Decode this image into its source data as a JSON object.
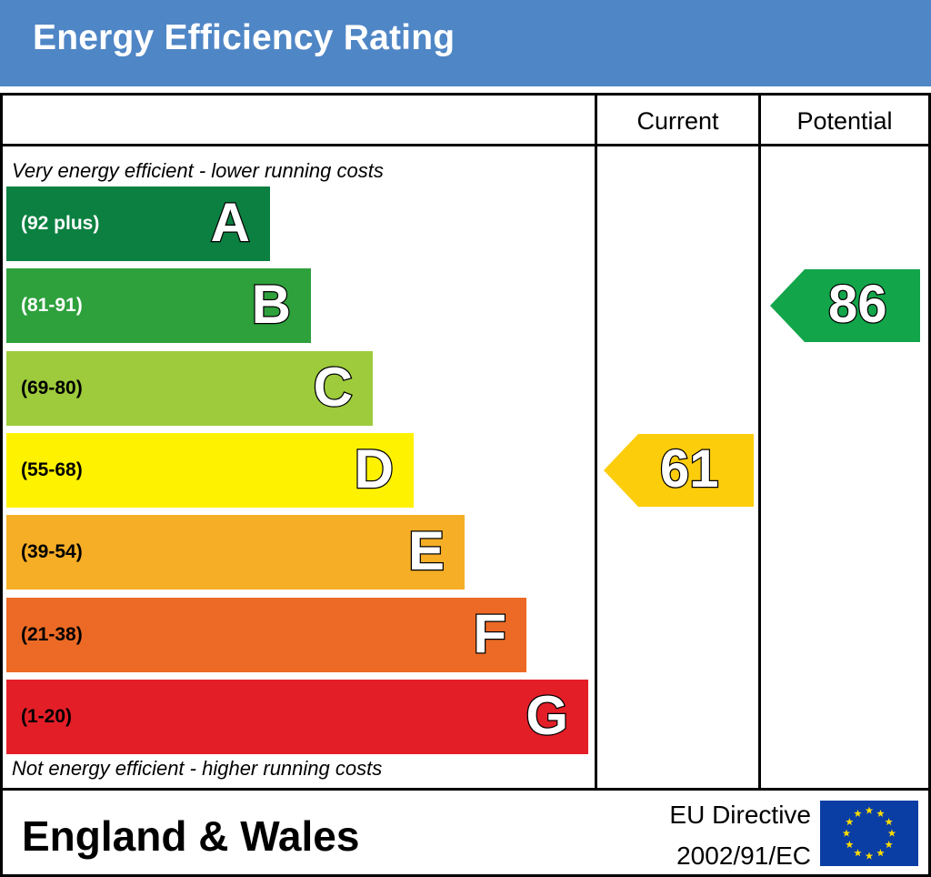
{
  "title": "Energy Efficiency Rating",
  "columns": {
    "current": "Current",
    "potential": "Potential"
  },
  "captions": {
    "top": "Very energy efficient - lower running costs",
    "bottom": "Not energy efficient - higher running costs"
  },
  "footer": {
    "region": "England & Wales",
    "directive_line1": "EU Directive",
    "directive_line2": "2002/91/EC"
  },
  "colors": {
    "header": "#4f86c6",
    "flag": "#0a3ea5",
    "star": "#ffdd00"
  },
  "chart_data": {
    "type": "bar",
    "title": "Energy Efficiency Rating",
    "categories": [
      "A",
      "B",
      "C",
      "D",
      "E",
      "F",
      "G"
    ],
    "bands": [
      {
        "letter": "A",
        "range": "(92 plus)",
        "min": 92,
        "max": 100,
        "color": "#0b8040",
        "range_color": "#ffffff"
      },
      {
        "letter": "B",
        "range": "(81-91)",
        "min": 81,
        "max": 91,
        "color": "#2ea03c",
        "range_color": "#ffffff"
      },
      {
        "letter": "C",
        "range": "(69-80)",
        "min": 69,
        "max": 80,
        "color": "#9ecb3c",
        "range_color": "#000000"
      },
      {
        "letter": "D",
        "range": "(55-68)",
        "min": 55,
        "max": 68,
        "color": "#fff200",
        "range_color": "#000000"
      },
      {
        "letter": "E",
        "range": "(39-54)",
        "min": 39,
        "max": 54,
        "color": "#f5ae26",
        "range_color": "#000000"
      },
      {
        "letter": "F",
        "range": "(21-38)",
        "min": 21,
        "max": 38,
        "color": "#ec6a25",
        "range_color": "#000000"
      },
      {
        "letter": "G",
        "range": "(1-20)",
        "min": 1,
        "max": 20,
        "color": "#e31e27",
        "range_color": "#000000"
      }
    ],
    "series": [
      {
        "name": "Current",
        "value": 61,
        "band": "D",
        "color": "#fccd0b"
      },
      {
        "name": "Potential",
        "value": 86,
        "band": "B",
        "color": "#12a54a"
      }
    ]
  }
}
